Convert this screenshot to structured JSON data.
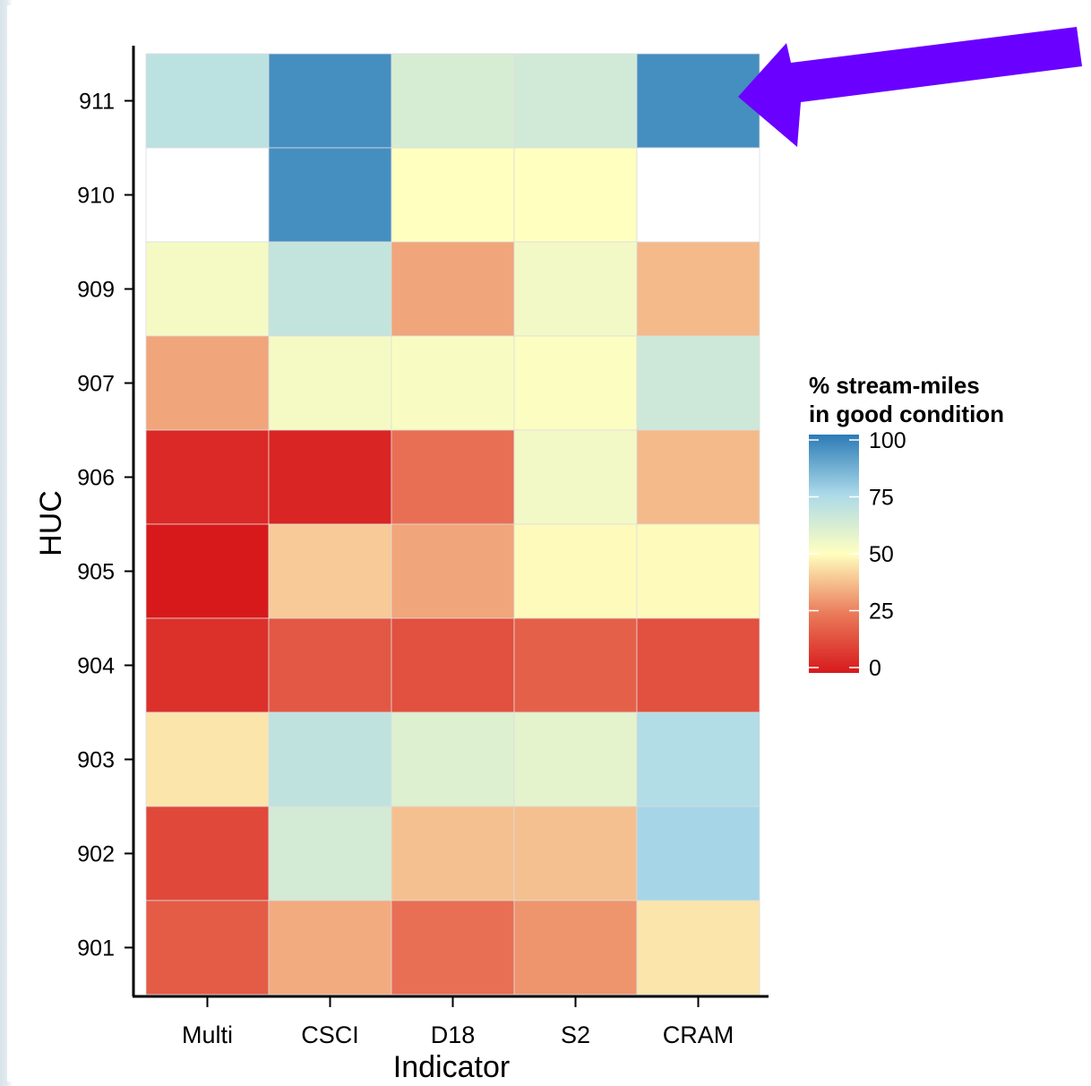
{
  "chart_data": {
    "type": "heatmap",
    "xlabel": "Indicator",
    "ylabel": "HUC",
    "x_categories": [
      "Multi",
      "CSCI",
      "D18",
      "S2",
      "CRAM"
    ],
    "y_categories": [
      "911",
      "910",
      "909",
      "907",
      "906",
      "905",
      "904",
      "903",
      "902",
      "901"
    ],
    "values": [
      [
        70,
        95,
        62,
        64,
        95
      ],
      [
        null,
        95,
        50,
        50,
        null
      ],
      [
        53,
        68,
        33,
        54,
        37
      ],
      [
        33,
        53,
        52,
        51,
        65
      ],
      [
        4,
        3,
        22,
        54,
        37
      ],
      [
        0,
        40,
        33,
        49,
        49
      ],
      [
        6,
        16,
        14,
        18,
        14
      ],
      [
        45,
        69,
        60,
        58,
        73
      ],
      [
        12,
        63,
        38,
        38,
        76
      ],
      [
        17,
        34,
        22,
        30,
        45
      ]
    ],
    "legend": {
      "title": [
        "% stream-miles",
        "in good condition"
      ],
      "ticks": [
        100,
        75,
        50,
        25,
        0
      ],
      "range": [
        0,
        100
      ],
      "placement": "right"
    },
    "colors": {
      "0": "#d7191c",
      "25": "#ea7b5a",
      "50": "#ffffbf",
      "75": "#abd9e9",
      "100": "#2c7bb6",
      "missing": "#ffffff"
    },
    "annotation": {
      "type": "arrow",
      "color": "#6a00ff",
      "points_to": "HUC 911, CRAM"
    }
  }
}
